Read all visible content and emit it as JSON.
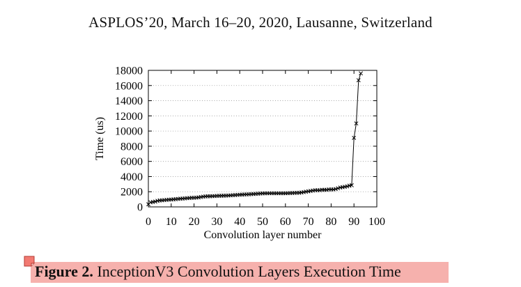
{
  "header": {
    "running_head": "ASPLOS’20, March 16–20, 2020, Lausanne, Switzerland"
  },
  "caption": {
    "label": "Figure 2.",
    "text": "InceptionV3 Convolution Layers Execution Time"
  },
  "annotation": {
    "icon": "note-icon",
    "highlight_color": "#f6b1ad"
  },
  "chart_data": {
    "type": "line",
    "xlabel": "Convolution layer number",
    "ylabel": "Time (us)",
    "xlim": [
      0,
      100
    ],
    "ylim": [
      0,
      18000
    ],
    "xticks": [
      0,
      10,
      20,
      30,
      40,
      50,
      60,
      70,
      80,
      90,
      100
    ],
    "yticks": [
      0,
      2000,
      4000,
      6000,
      8000,
      10000,
      12000,
      14000,
      16000,
      18000
    ],
    "grid": "horizontal dotted",
    "marker": "x",
    "series": [
      {
        "x": [
          0,
          1,
          2,
          3,
          4,
          5,
          6,
          7,
          8,
          9,
          10,
          11,
          12,
          13,
          14,
          15,
          16,
          17,
          18,
          19,
          20,
          21,
          22,
          23,
          24,
          25,
          26,
          27,
          28,
          29,
          30,
          31,
          32,
          33,
          34,
          35,
          36,
          37,
          38,
          39,
          40,
          41,
          42,
          43,
          44,
          45,
          46,
          47,
          48,
          49,
          50,
          51,
          52,
          53,
          54,
          55,
          56,
          57,
          58,
          59,
          60,
          61,
          62,
          63,
          64,
          65,
          66,
          67,
          68,
          69,
          70,
          71,
          72,
          73,
          74,
          75,
          76,
          77,
          78,
          79,
          80,
          81,
          82,
          83,
          84,
          85,
          86,
          87,
          88,
          89,
          90,
          91,
          92,
          93
        ],
        "values": [
          350,
          600,
          650,
          700,
          800,
          850,
          870,
          900,
          920,
          950,
          970,
          1000,
          1020,
          1050,
          1080,
          1100,
          1120,
          1150,
          1170,
          1200,
          1200,
          1220,
          1250,
          1300,
          1350,
          1380,
          1400,
          1400,
          1420,
          1430,
          1450,
          1460,
          1470,
          1480,
          1490,
          1500,
          1520,
          1540,
          1560,
          1580,
          1600,
          1620,
          1640,
          1650,
          1660,
          1680,
          1700,
          1720,
          1740,
          1760,
          1780,
          1790,
          1800,
          1800,
          1800,
          1800,
          1800,
          1800,
          1800,
          1800,
          1800,
          1810,
          1820,
          1830,
          1840,
          1850,
          1860,
          1900,
          1950,
          2000,
          2050,
          2100,
          2150,
          2200,
          2200,
          2200,
          2250,
          2250,
          2250,
          2300,
          2300,
          2300,
          2350,
          2450,
          2550,
          2600,
          2650,
          2700,
          2800,
          2850,
          9100,
          11000,
          16700,
          17600
        ]
      }
    ]
  }
}
